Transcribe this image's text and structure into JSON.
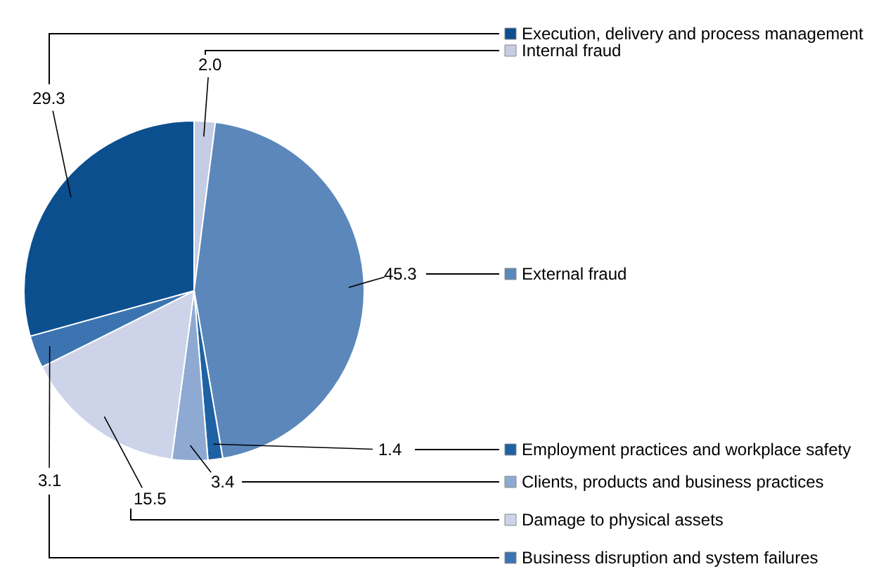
{
  "chart_data": {
    "type": "pie",
    "categories": [
      "Internal fraud",
      "External fraud",
      "Employment practices and workplace safety",
      "Clients, products and business practices",
      "Damage to physical assets",
      "Business disruption and system failures",
      "Execution, delivery and process management"
    ],
    "values": [
      2.0,
      45.3,
      1.4,
      3.4,
      15.5,
      3.1,
      29.3
    ],
    "value_labels": [
      "2.0",
      "45.3",
      "1.4",
      "3.4",
      "15.5",
      "3.1",
      "29.3"
    ],
    "legend": "right",
    "colors": [
      "#c5cde4",
      "#5b87bb",
      "#1f62a3",
      "#8eaad2",
      "#cdd3e9",
      "#3b74b1",
      "#0b4f8f"
    ]
  }
}
